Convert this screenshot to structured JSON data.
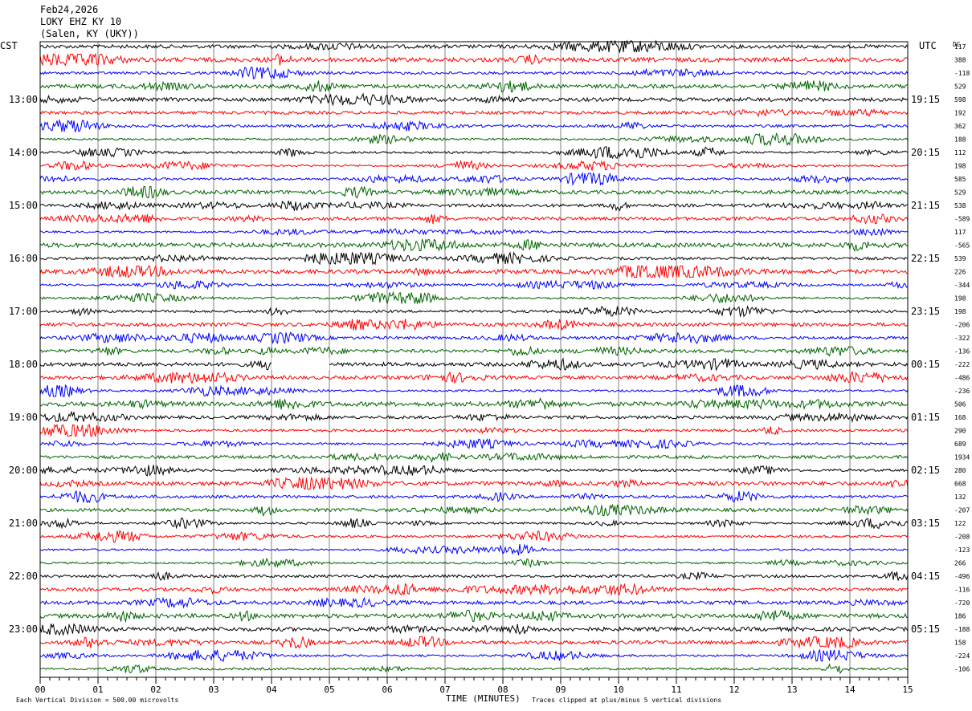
{
  "header": {
    "date": "Feb24,2026",
    "station": "LOKY EHZ KY 10",
    "location": "(Salen, KY (UKY))"
  },
  "left_axis_label": "CST",
  "right_axis_label": "UTC",
  "dc_label": "DC",
  "footer": {
    "scale_note": "Each Vertical Division =  500.00 microvolts",
    "clip_note": "Traces clipped at plus/minus 5 vertical divisions"
  },
  "colors": {
    "trace_cycle": [
      "#000000",
      "#ff0000",
      "#0000ff",
      "#006400"
    ],
    "grid": "#000000",
    "gap": "#ffffff"
  },
  "chart_data": {
    "type": "seismogram",
    "xlabel": "TIME (MINUTES)",
    "x_ticks": [
      "00",
      "01",
      "02",
      "03",
      "04",
      "05",
      "06",
      "07",
      "08",
      "09",
      "10",
      "11",
      "12",
      "13",
      "14",
      "15"
    ],
    "xlim": [
      0,
      15
    ],
    "traces_per_hour": 4,
    "trace_count": 48,
    "left_hour_labels": [
      "13:00",
      "14:00",
      "15:00",
      "16:00",
      "17:00",
      "18:00",
      "19:00",
      "20:00",
      "21:00",
      "22:00",
      "23:00"
    ],
    "right_hour_labels": [
      "19:15",
      "20:15",
      "21:15",
      "22:15",
      "23:15",
      "00:15",
      "01:15",
      "02:15",
      "03:15",
      "04:15",
      "05:15"
    ],
    "dc_offsets": [
      "117",
      "388",
      "-118",
      "529",
      "598",
      "192",
      "362",
      "188",
      "112",
      "198",
      "585",
      "529",
      "538",
      "-589",
      "117",
      "-565",
      "539",
      "226",
      "-344",
      "198",
      "198",
      "-206",
      "-322",
      "-136",
      "-222",
      "-486",
      "-236",
      "506",
      "168",
      "290",
      "689",
      "1934",
      "280",
      "668",
      "132",
      "-207",
      "122",
      "-208",
      "-123",
      "266",
      "-496",
      "-116",
      "-720",
      "186",
      "-188",
      "158",
      "-224",
      "-106"
    ],
    "gap": {
      "trace_index": 24,
      "x_start_min": 4.0,
      "x_end_min": 5.0
    }
  }
}
